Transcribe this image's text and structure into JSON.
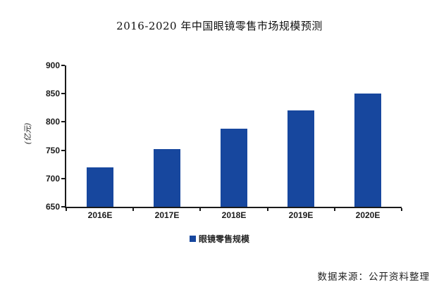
{
  "title": "2016-2020 年中国眼镜零售市场规模预测",
  "source_note": "数据来源：公开资料整理",
  "legend": {
    "marker_color": "#17479E",
    "label": "眼镜零售规模"
  },
  "chart_data": {
    "type": "bar",
    "title": "2016-2020 年中国眼镜零售市场规模预测",
    "categories": [
      "2016E",
      "2017E",
      "2018E",
      "2019E",
      "2020E"
    ],
    "values": [
      720,
      752,
      788,
      820,
      850
    ],
    "xlabel": "",
    "ylabel": "(亿元)",
    "ylim": [
      650,
      900
    ],
    "ytick_step": 50,
    "yticks": [
      650,
      700,
      750,
      800,
      850,
      900
    ],
    "bar_color": "#17479E",
    "axis_color": "#1a1a1a",
    "legend_entries": [
      "眼镜零售规模"
    ],
    "legend_position": "bottom",
    "grid": false
  }
}
